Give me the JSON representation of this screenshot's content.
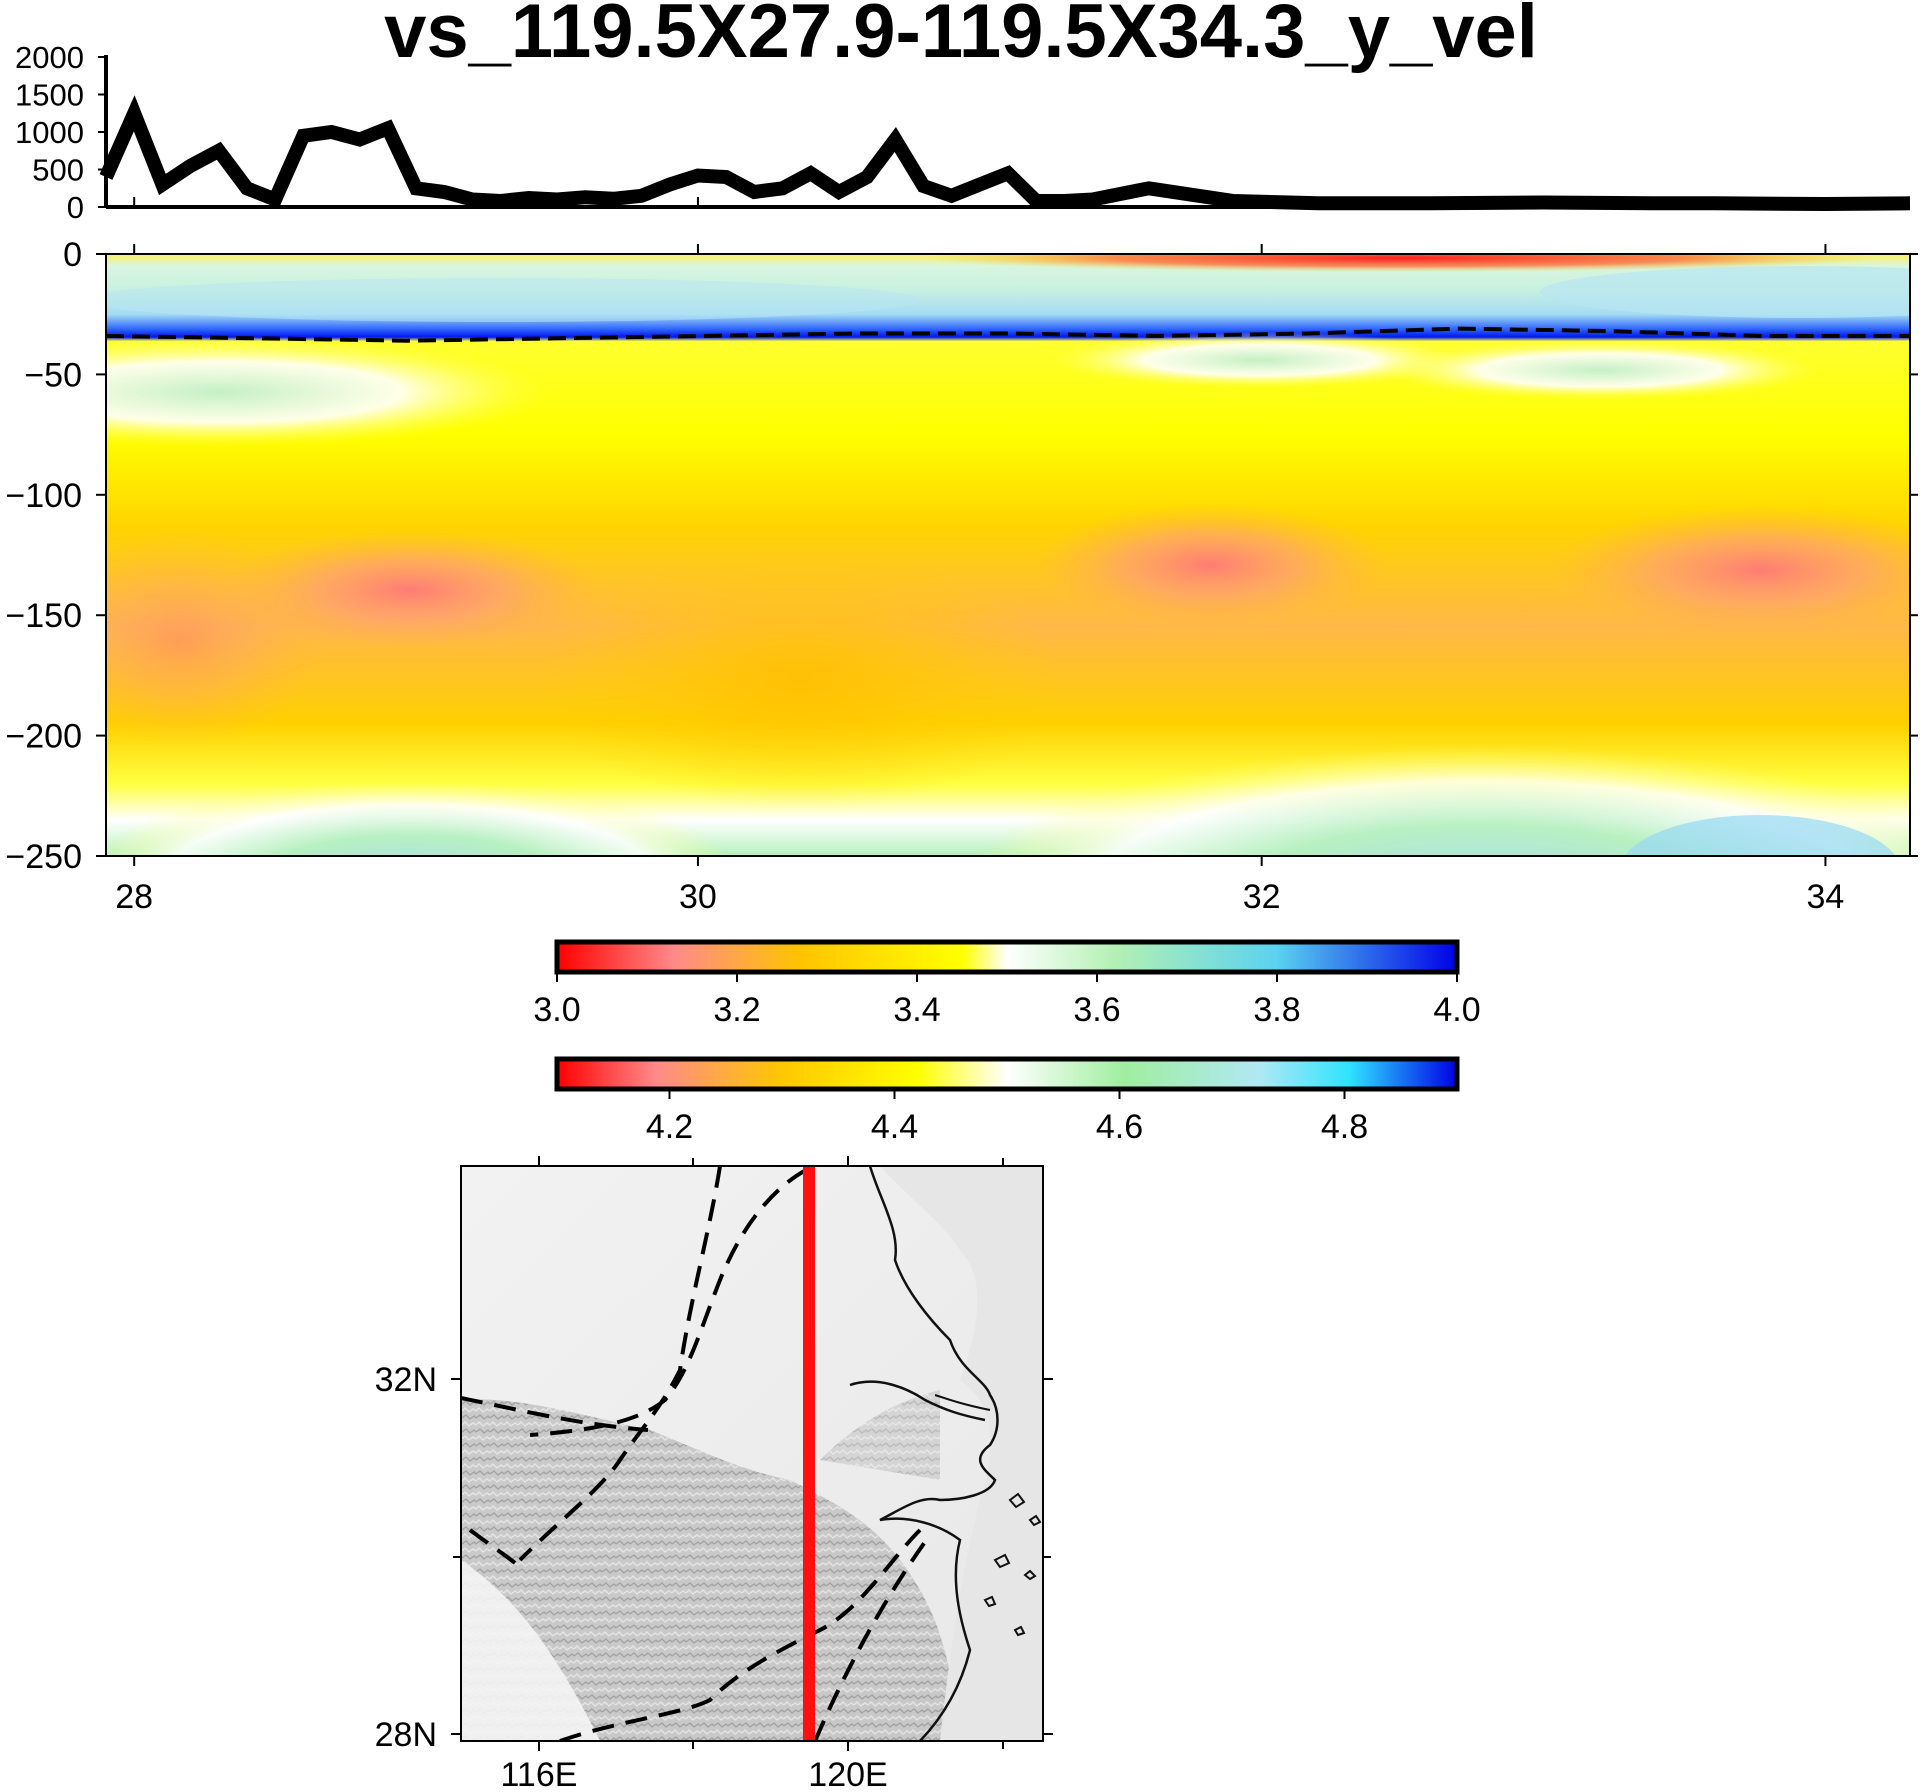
{
  "chart_data": [
    {
      "type": "line",
      "title": "vs_119.5X27.9-119.5X34.3_y_vel",
      "description_axis": "elevation",
      "ylim": [
        0,
        2000
      ],
      "y_ticks": [
        "2000",
        "1500",
        "1000",
        "500",
        "0"
      ],
      "x": [
        27.9,
        28.0,
        28.1,
        28.2,
        28.3,
        28.4,
        28.5,
        28.6,
        28.7,
        28.8,
        28.9,
        29.0,
        29.1,
        29.2,
        29.3,
        29.4,
        29.5,
        29.6,
        29.7,
        29.8,
        29.9,
        30.0,
        30.1,
        30.2,
        30.3,
        30.4,
        30.5,
        30.6,
        30.7,
        30.8,
        30.9,
        31.0,
        31.1,
        31.2,
        31.3,
        31.4,
        31.6,
        31.9,
        32.2,
        32.6,
        33.0,
        33.4,
        33.6,
        34.0,
        34.3
      ],
      "values": [
        400,
        1250,
        300,
        550,
        750,
        250,
        100,
        950,
        1000,
        900,
        1050,
        250,
        200,
        100,
        80,
        120,
        100,
        130,
        110,
        150,
        300,
        420,
        400,
        200,
        250,
        450,
        200,
        400,
        900,
        280,
        150,
        300,
        450,
        80,
        80,
        100,
        250,
        80,
        50,
        50,
        60,
        50,
        50,
        40,
        50
      ]
    },
    {
      "type": "heatmap",
      "xlim": [
        27.9,
        34.3
      ],
      "ylim": [
        -250,
        0
      ],
      "x_ticks": [
        "28",
        "30",
        "32",
        "34"
      ],
      "y_ticks": [
        "0",
        "−50",
        "−100",
        "−150",
        "−200",
        "−250"
      ],
      "moho_depth": [
        -34,
        -35,
        -36,
        -35,
        -34,
        -33,
        -33,
        -34,
        -33,
        -31,
        -32,
        -34,
        -34
      ]
    }
  ],
  "colorbars": [
    {
      "ticks": [
        "3.0",
        "3.2",
        "3.4",
        "3.6",
        "3.8",
        "4.0"
      ],
      "range": [
        3.0,
        4.0
      ]
    },
    {
      "ticks": [
        "4.2",
        "4.4",
        "4.6",
        "4.8"
      ],
      "range": [
        4.1,
        4.9
      ]
    }
  ],
  "colors": {
    "red": "#ff1a1a",
    "orange": "#ffc800",
    "yellow": "#ffff00",
    "white": "#ffffff",
    "green": "#aaf0b4",
    "light_blue": "#96e6ff",
    "blue": "#0033ff"
  },
  "map": {
    "x_ticks": [
      "116E",
      "120E"
    ],
    "y_ticks": [
      "32N",
      "28N"
    ],
    "profile_color": "#ff1010"
  }
}
